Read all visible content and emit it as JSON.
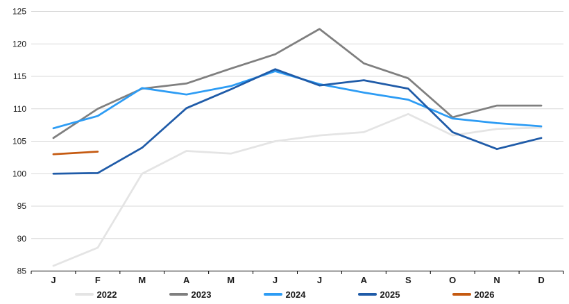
{
  "chart_data": {
    "type": "line",
    "title": "",
    "xlabel": "",
    "ylabel": "",
    "categories": [
      "J",
      "F",
      "M",
      "A",
      "M",
      "J",
      "J",
      "A",
      "S",
      "O",
      "N",
      "D"
    ],
    "y_ticks": [
      85,
      90,
      95,
      100,
      105,
      110,
      115,
      120,
      125
    ],
    "ylim": [
      85,
      125
    ],
    "grid": "horizontal",
    "legend_position": "bottom",
    "series": [
      {
        "name": "2022",
        "color": "#E4E4E4",
        "values": [
          85.8,
          88.6,
          100.0,
          103.5,
          103.1,
          105.0,
          105.9,
          106.4,
          109.2,
          105.9,
          106.9,
          107.1
        ]
      },
      {
        "name": "2023",
        "color": "#7F7F7F",
        "values": [
          105.5,
          110.0,
          113.1,
          113.9,
          116.2,
          118.4,
          122.3,
          117.0,
          114.7,
          108.7,
          110.5,
          110.5
        ]
      },
      {
        "name": "2024",
        "color": "#2D9CF4",
        "values": [
          107.0,
          108.9,
          113.2,
          112.2,
          113.5,
          115.8,
          113.8,
          112.5,
          111.4,
          108.5,
          107.8,
          107.3
        ]
      },
      {
        "name": "2025",
        "color": "#1F5BA8",
        "values": [
          100.0,
          100.1,
          104.0,
          110.1,
          113.0,
          116.1,
          113.6,
          114.4,
          113.1,
          106.4,
          103.8,
          105.5
        ]
      },
      {
        "name": "2026",
        "color": "#C55A11",
        "values": [
          103.0,
          103.4,
          null,
          null,
          null,
          null,
          null,
          null,
          null,
          null,
          null,
          null
        ]
      }
    ]
  },
  "style": {
    "gridline_color": "#D9D9D9",
    "axis_color": "#000000",
    "label_color": "#1a1a1a",
    "background": "#FFFFFF",
    "line_width": 2.75
  }
}
